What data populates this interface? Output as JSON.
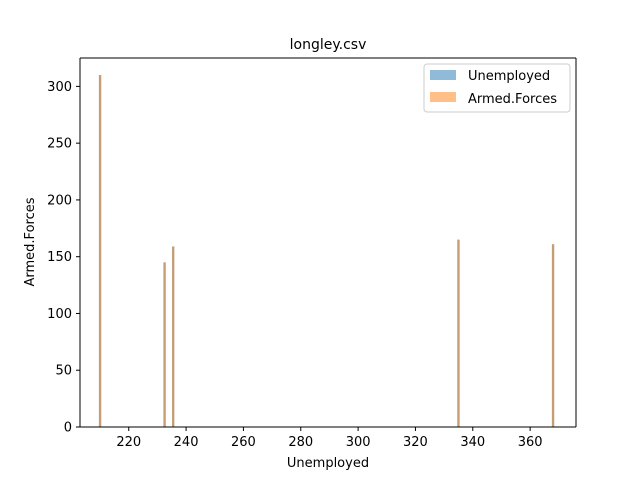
{
  "chart_data": {
    "type": "bar",
    "title": "longley.csv",
    "xlabel": "Unemployed",
    "ylabel": "Armed.Forces",
    "xlim": [
      203,
      376
    ],
    "ylim": [
      0,
      325
    ],
    "x_ticks": [
      220,
      240,
      260,
      280,
      300,
      320,
      340,
      360
    ],
    "y_ticks": [
      0,
      50,
      100,
      150,
      200,
      250,
      300
    ],
    "bar_width": 0.8,
    "grid": false,
    "legend_position": "top-right",
    "series": [
      {
        "name": "Unemployed",
        "color": "#1f77b4",
        "opacity": 0.5,
        "x": [
          210,
          232.5,
          235.5,
          335,
          368
        ],
        "values": [
          310,
          145,
          159,
          165,
          161
        ]
      },
      {
        "name": "Armed.Forces",
        "color": "#ff7f0e",
        "opacity": 0.5,
        "x": [
          210,
          232.5,
          235.5,
          335,
          368
        ],
        "values": [
          310,
          145,
          159,
          165,
          161
        ]
      }
    ]
  }
}
